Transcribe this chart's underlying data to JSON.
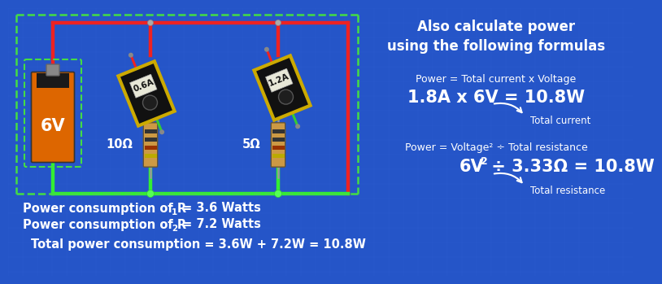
{
  "bg_color": "#2555c8",
  "grid_color": "#3366dd",
  "title_right": "Also calculate power\nusing the following formulas",
  "formula1_label": "Power = Total current x Voltage",
  "formula1_value": "1.8A x 6V = 10.8W",
  "formula1_note": "Total current",
  "formula2_label": "Power = Voltage² ÷ Total resistance",
  "formula2_value_pre": "6V",
  "formula2_value_post": "² ÷ 3.33Ω = 10.8W",
  "formula2_note": "Total resistance",
  "text_color": "#ffffff",
  "wire_red": "#ee2222",
  "wire_green": "#33ee33",
  "dashed_green": "#44dd44",
  "battery_orange": "#dd6600",
  "battery_black": "#1a1a1a",
  "meter_yellow": "#ccaa00",
  "meter_black": "#111111",
  "resistor_tan": "#cc9944",
  "resistor_dark": "#554422"
}
